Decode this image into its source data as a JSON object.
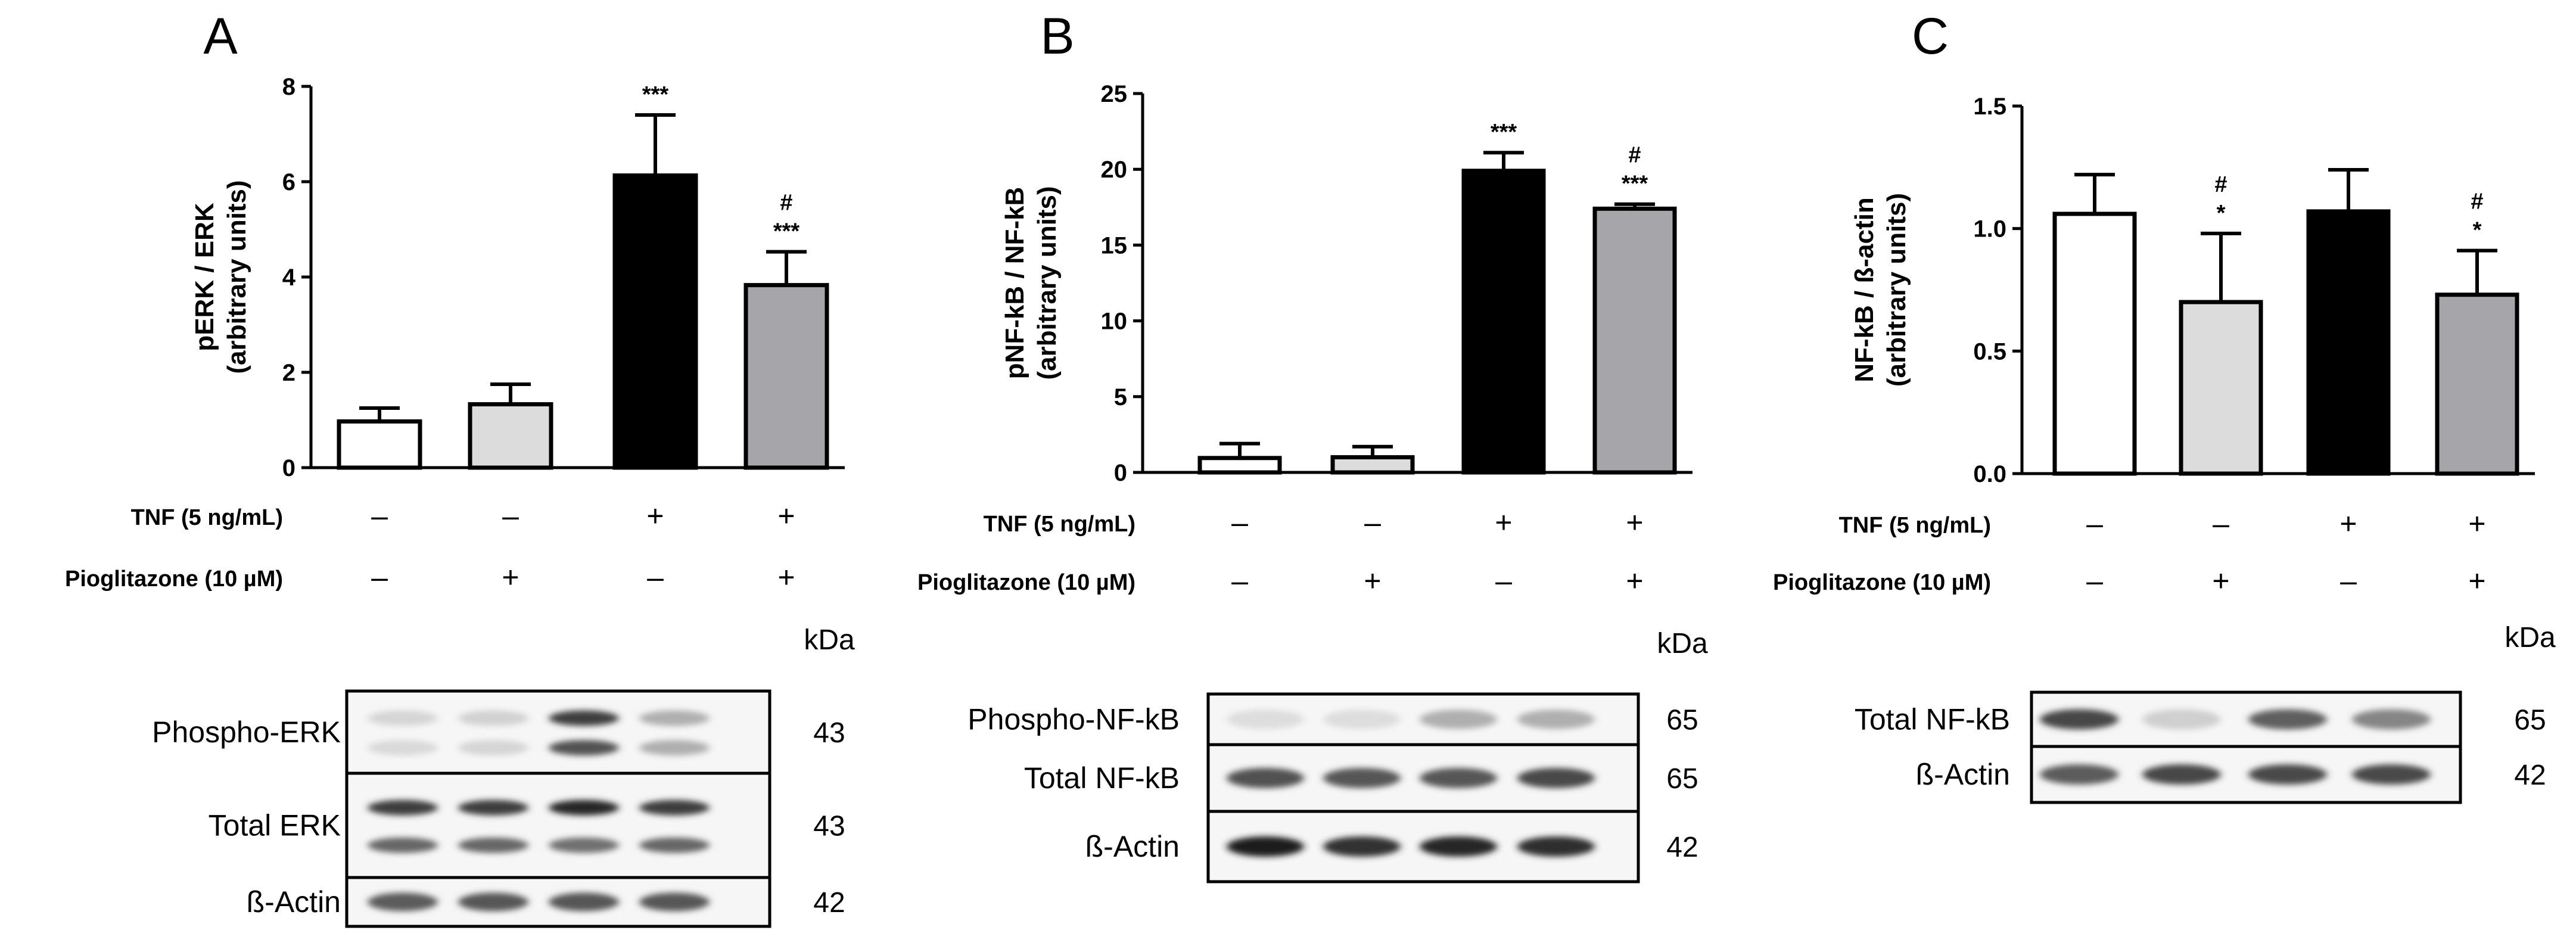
{
  "chart_data": [
    {
      "type": "bar",
      "panel": "A",
      "ylabel": [
        "pERK / ERK",
        "(arbitrary units)"
      ],
      "ylim": [
        0,
        8
      ],
      "yticks": [
        "0",
        "2",
        "4",
        "6",
        "8"
      ],
      "categories": [
        "TNF − / Pio −",
        "TNF − / Pio +",
        "TNF + / Pio −",
        "TNF + / Pio +"
      ],
      "values": [
        0.97,
        1.33,
        6.13,
        3.83
      ],
      "errors": [
        0.28,
        0.42,
        1.27,
        0.7
      ],
      "fills": [
        "#ffffff",
        "#dcdcdc",
        "#000000",
        "#a6a5aa"
      ],
      "annotations": [
        [],
        [],
        [
          "***"
        ],
        [
          "#",
          "***"
        ]
      ],
      "conditions": [
        {
          "label": "TNF (5 ng/mL)",
          "marks": [
            "–",
            "–",
            "+",
            "+"
          ]
        },
        {
          "label": "Pioglitazone (10 µM)",
          "marks": [
            "–",
            "+",
            "–",
            "+"
          ]
        }
      ]
    },
    {
      "type": "bar",
      "panel": "B",
      "ylabel": [
        "pNF-kB / NF-kB",
        "(arbitrary units)"
      ],
      "ylim": [
        0,
        25
      ],
      "yticks": [
        "0",
        "5",
        "10",
        "15",
        "20",
        "25"
      ],
      "categories": [
        "TNF − / Pio −",
        "TNF − / Pio +",
        "TNF + / Pio −",
        "TNF + / Pio +"
      ],
      "values": [
        0.95,
        1.0,
        19.9,
        17.4
      ],
      "errors": [
        0.95,
        0.7,
        1.2,
        0.3
      ],
      "fills": [
        "#ffffff",
        "#dcdcdc",
        "#000000",
        "#a6a5aa"
      ],
      "annotations": [
        [],
        [],
        [
          "***"
        ],
        [
          "#",
          "***"
        ]
      ],
      "conditions": [
        {
          "label": "TNF (5 ng/mL)",
          "marks": [
            "–",
            "–",
            "+",
            "+"
          ]
        },
        {
          "label": "Pioglitazone (10 µM)",
          "marks": [
            "–",
            "+",
            "–",
            "+"
          ]
        }
      ]
    },
    {
      "type": "bar",
      "panel": "C",
      "ylabel": [
        "NF-kB / ß-actin",
        "(arbitrary units)"
      ],
      "ylim": [
        0,
        1.5
      ],
      "yticks": [
        "0.0",
        "0.5",
        "1.0",
        "1.5"
      ],
      "categories": [
        "TNF − / Pio −",
        "TNF − / Pio +",
        "TNF + / Pio −",
        "TNF + / Pio +"
      ],
      "values": [
        1.06,
        0.7,
        1.07,
        0.73
      ],
      "errors": [
        0.16,
        0.28,
        0.17,
        0.18
      ],
      "fills": [
        "#ffffff",
        "#dcdcdc",
        "#000000",
        "#a6a5aa"
      ],
      "annotations": [
        [],
        [
          "#",
          "*"
        ],
        [],
        [
          "#",
          "*"
        ]
      ],
      "conditions": [
        {
          "label": "TNF (5 ng/mL)",
          "marks": [
            "–",
            "–",
            "+",
            "+"
          ]
        },
        {
          "label": "Pioglitazone (10 µM)",
          "marks": [
            "–",
            "+",
            "–",
            "+"
          ]
        }
      ]
    }
  ],
  "blots": [
    {
      "panel": "A",
      "kda_header": "kDa",
      "rows": [
        {
          "label": "Phospho-ERK",
          "kda": "43",
          "bands": [
            [
              0.12,
              0.1
            ],
            [
              0.14,
              0.12
            ],
            [
              0.85,
              0.75
            ],
            [
              0.3,
              0.3
            ]
          ]
        },
        {
          "label": "Total ERK",
          "kda": "43",
          "bands": [
            [
              0.85,
              0.65
            ],
            [
              0.85,
              0.65
            ],
            [
              0.95,
              0.6
            ],
            [
              0.85,
              0.65
            ]
          ]
        },
        {
          "label": "ß-Actin",
          "kda": "42",
          "bands": [
            [
              0.7
            ],
            [
              0.72
            ],
            [
              0.72
            ],
            [
              0.72
            ]
          ]
        }
      ]
    },
    {
      "panel": "B",
      "kda_header": "kDa",
      "rows": [
        {
          "label": "Phospho-NF-kB",
          "kda": "65",
          "bands": [
            [
              0.08
            ],
            [
              0.08
            ],
            [
              0.3
            ],
            [
              0.3
            ]
          ]
        },
        {
          "label": "Total NF-kB",
          "kda": "65",
          "bands": [
            [
              0.75
            ],
            [
              0.72
            ],
            [
              0.72
            ],
            [
              0.78
            ]
          ]
        },
        {
          "label": "ß-Actin",
          "kda": "42",
          "bands": [
            [
              1.0
            ],
            [
              0.9
            ],
            [
              0.95
            ],
            [
              0.92
            ]
          ]
        }
      ]
    },
    {
      "panel": "C",
      "kda_header": "kDa",
      "rows": [
        {
          "label": "Total NF-kB",
          "kda": "65",
          "bands": [
            [
              0.8
            ],
            [
              0.15
            ],
            [
              0.68
            ],
            [
              0.5
            ]
          ]
        },
        {
          "label": "ß-Actin",
          "kda": "42",
          "bands": [
            [
              0.7
            ],
            [
              0.8
            ],
            [
              0.78
            ],
            [
              0.78
            ]
          ]
        }
      ]
    }
  ]
}
